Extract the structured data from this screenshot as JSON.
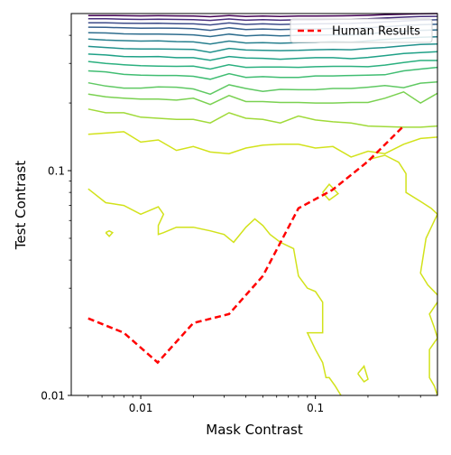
{
  "chart_data": {
    "type": "contour",
    "title": "",
    "xlabel": "Mask Contrast",
    "ylabel": "Test Contrast",
    "xscale": "log",
    "yscale": "log",
    "xlim": [
      0.004,
      0.5
    ],
    "ylim": [
      0.01,
      0.5
    ],
    "x_ticks": [
      {
        "value": 0.01,
        "label": "0.01"
      },
      {
        "value": 0.1,
        "label": "0.1"
      }
    ],
    "y_ticks": [
      {
        "value": 0.01,
        "label": "0.01"
      },
      {
        "value": 0.1,
        "label": "0.1"
      }
    ],
    "legend": {
      "position": "top-right",
      "entries": [
        "Human Results"
      ]
    },
    "human_results": {
      "name": "Human Results",
      "color": "#ff0000",
      "line_style": "dashed",
      "x": [
        0.005,
        0.008,
        0.0125,
        0.02,
        0.032,
        0.05,
        0.08,
        0.125,
        0.2,
        0.32
      ],
      "y": [
        0.022,
        0.019,
        0.014,
        0.021,
        0.023,
        0.034,
        0.068,
        0.082,
        0.11,
        0.158
      ]
    },
    "contours": {
      "colormap": "viridis",
      "x_grid": [
        0.005,
        0.0063,
        0.008,
        0.01,
        0.0126,
        0.016,
        0.02,
        0.025,
        0.032,
        0.04,
        0.05,
        0.063,
        0.08,
        0.1,
        0.126,
        0.16,
        0.2,
        0.25,
        0.32,
        0.4,
        0.5
      ],
      "upper_lines": [
        {
          "color": "#d2e21b",
          "y": [
            0.145,
            0.147,
            0.149,
            0.134,
            0.137,
            0.123,
            0.128,
            0.121,
            0.119,
            0.126,
            0.13,
            0.131,
            0.131,
            0.126,
            0.128,
            0.115,
            0.122,
            0.119,
            0.131,
            0.139,
            0.141
          ]
        },
        {
          "color": "#a0da39",
          "y": [
            0.188,
            0.181,
            0.181,
            0.173,
            0.171,
            0.169,
            0.169,
            0.163,
            0.181,
            0.171,
            0.169,
            0.163,
            0.175,
            0.168,
            0.165,
            0.163,
            0.158,
            0.157,
            0.156,
            0.156,
            0.158
          ]
        },
        {
          "color": "#7ad151",
          "y": [
            0.219,
            0.213,
            0.21,
            0.208,
            0.208,
            0.206,
            0.21,
            0.197,
            0.216,
            0.203,
            0.203,
            0.201,
            0.201,
            0.2,
            0.2,
            0.201,
            0.201,
            0.21,
            0.224,
            0.2,
            0.221
          ]
        },
        {
          "color": "#60c963",
          "y": [
            0.246,
            0.238,
            0.233,
            0.233,
            0.236,
            0.235,
            0.231,
            0.219,
            0.241,
            0.232,
            0.225,
            0.23,
            0.229,
            0.229,
            0.232,
            0.232,
            0.235,
            0.239,
            0.234,
            0.245,
            0.248
          ]
        },
        {
          "color": "#40bd72",
          "y": [
            0.278,
            0.275,
            0.268,
            0.266,
            0.265,
            0.265,
            0.263,
            0.255,
            0.27,
            0.26,
            0.262,
            0.26,
            0.26,
            0.264,
            0.264,
            0.265,
            0.266,
            0.267,
            0.278,
            0.283,
            0.288
          ]
        },
        {
          "color": "#2bb07f",
          "y": [
            0.306,
            0.3,
            0.296,
            0.293,
            0.292,
            0.291,
            0.292,
            0.283,
            0.296,
            0.288,
            0.289,
            0.289,
            0.288,
            0.29,
            0.291,
            0.291,
            0.29,
            0.295,
            0.303,
            0.309,
            0.309
          ]
        },
        {
          "color": "#1fa187",
          "y": [
            0.33,
            0.327,
            0.322,
            0.321,
            0.322,
            0.318,
            0.318,
            0.31,
            0.322,
            0.317,
            0.316,
            0.313,
            0.316,
            0.318,
            0.318,
            0.315,
            0.319,
            0.325,
            0.332,
            0.335,
            0.338
          ]
        },
        {
          "color": "#21918c",
          "y": [
            0.357,
            0.353,
            0.349,
            0.348,
            0.348,
            0.347,
            0.346,
            0.336,
            0.35,
            0.344,
            0.343,
            0.342,
            0.343,
            0.345,
            0.346,
            0.345,
            0.35,
            0.353,
            0.359,
            0.364,
            0.366
          ]
        },
        {
          "color": "#277f8e",
          "y": [
            0.385,
            0.381,
            0.379,
            0.377,
            0.378,
            0.375,
            0.374,
            0.366,
            0.377,
            0.37,
            0.371,
            0.369,
            0.371,
            0.372,
            0.375,
            0.373,
            0.378,
            0.383,
            0.388,
            0.392,
            0.394
          ]
        },
        {
          "color": "#2e6d8e",
          "y": [
            0.411,
            0.41,
            0.406,
            0.405,
            0.405,
            0.404,
            0.402,
            0.395,
            0.405,
            0.398,
            0.401,
            0.398,
            0.4,
            0.401,
            0.402,
            0.402,
            0.406,
            0.412,
            0.417,
            0.421,
            0.423
          ]
        },
        {
          "color": "#355f8d",
          "y": [
            0.435,
            0.434,
            0.432,
            0.43,
            0.431,
            0.43,
            0.428,
            0.421,
            0.432,
            0.424,
            0.427,
            0.424,
            0.426,
            0.427,
            0.429,
            0.429,
            0.432,
            0.437,
            0.442,
            0.446,
            0.448
          ]
        },
        {
          "color": "#3e4c8a",
          "y": [
            0.455,
            0.455,
            0.453,
            0.452,
            0.453,
            0.451,
            0.45,
            0.445,
            0.454,
            0.447,
            0.45,
            0.447,
            0.449,
            0.45,
            0.451,
            0.452,
            0.455,
            0.459,
            0.463,
            0.467,
            0.469
          ]
        },
        {
          "color": "#472d7b",
          "y": [
            0.474,
            0.474,
            0.472,
            0.471,
            0.472,
            0.471,
            0.47,
            0.466,
            0.473,
            0.467,
            0.47,
            0.467,
            0.469,
            0.469,
            0.471,
            0.472,
            0.474,
            0.478,
            0.482,
            0.485,
            0.486
          ]
        },
        {
          "color": "#440154",
          "y": [
            0.49,
            0.49,
            0.489,
            0.488,
            0.489,
            0.488,
            0.487,
            0.484,
            0.49,
            0.485,
            0.487,
            0.485,
            0.487,
            0.487,
            0.488,
            0.489,
            0.491,
            0.494,
            0.497,
            0.499,
            0.5
          ]
        }
      ],
      "lower_line": {
        "color": "#d2e21b",
        "x": [
          0.005,
          0.0063,
          0.008,
          0.01,
          0.0126,
          0.0135,
          0.0126,
          0.0126,
          0.0135,
          0.016,
          0.02,
          0.025,
          0.03,
          0.034,
          0.04,
          0.045,
          0.05,
          0.055,
          0.063,
          0.075,
          0.08,
          0.09,
          0.1,
          0.11,
          0.11,
          0.11,
          0.09,
          0.1,
          0.11,
          0.115,
          0.12,
          0.13,
          0.14
        ],
        "y": [
          0.083,
          0.072,
          0.07,
          0.064,
          0.069,
          0.064,
          0.057,
          0.052,
          0.053,
          0.056,
          0.056,
          0.054,
          0.052,
          0.048,
          0.056,
          0.061,
          0.057,
          0.052,
          0.048,
          0.045,
          0.034,
          0.03,
          0.029,
          0.026,
          0.023,
          0.019,
          0.019,
          0.016,
          0.014,
          0.012,
          0.012,
          0.011,
          0.01
        ]
      },
      "right_line": {
        "color": "#d2e21b",
        "x": [
          0.2,
          0.25,
          0.3,
          0.33,
          0.33,
          0.4,
          0.46,
          0.5
        ],
        "y": [
          0.112,
          0.117,
          0.109,
          0.097,
          0.08,
          0.073,
          0.068,
          0.064
        ]
      },
      "right_line2": {
        "color": "#d2e21b",
        "x": [
          0.5,
          0.48,
          0.43,
          0.4,
          0.44,
          0.5
        ],
        "y": [
          0.064,
          0.06,
          0.05,
          0.035,
          0.031,
          0.028
        ]
      },
      "right_line3": {
        "color": "#d2e21b",
        "x": [
          0.5,
          0.45,
          0.48,
          0.5
        ],
        "y": [
          0.026,
          0.023,
          0.02,
          0.018
        ]
      },
      "right_line4": {
        "color": "#d2e21b",
        "x": [
          0.5,
          0.45,
          0.45,
          0.48,
          0.5
        ],
        "y": [
          0.018,
          0.016,
          0.012,
          0.011,
          0.01
        ]
      },
      "loops": [
        {
          "color": "#d2e21b",
          "x": [
            0.0063,
            0.0066,
            0.0069,
            0.0066,
            0.0063
          ],
          "y": [
            0.053,
            0.054,
            0.053,
            0.051,
            0.053
          ]
        },
        {
          "color": "#d2e21b",
          "x": [
            0.11,
            0.12,
            0.135,
            0.12,
            0.11
          ],
          "y": [
            0.08,
            0.087,
            0.079,
            0.074,
            0.08
          ]
        },
        {
          "color": "#d2e21b",
          "x": [
            0.175,
            0.19,
            0.2,
            0.19,
            0.175
          ],
          "y": [
            0.0125,
            0.0135,
            0.0118,
            0.0115,
            0.0125
          ]
        }
      ]
    }
  }
}
